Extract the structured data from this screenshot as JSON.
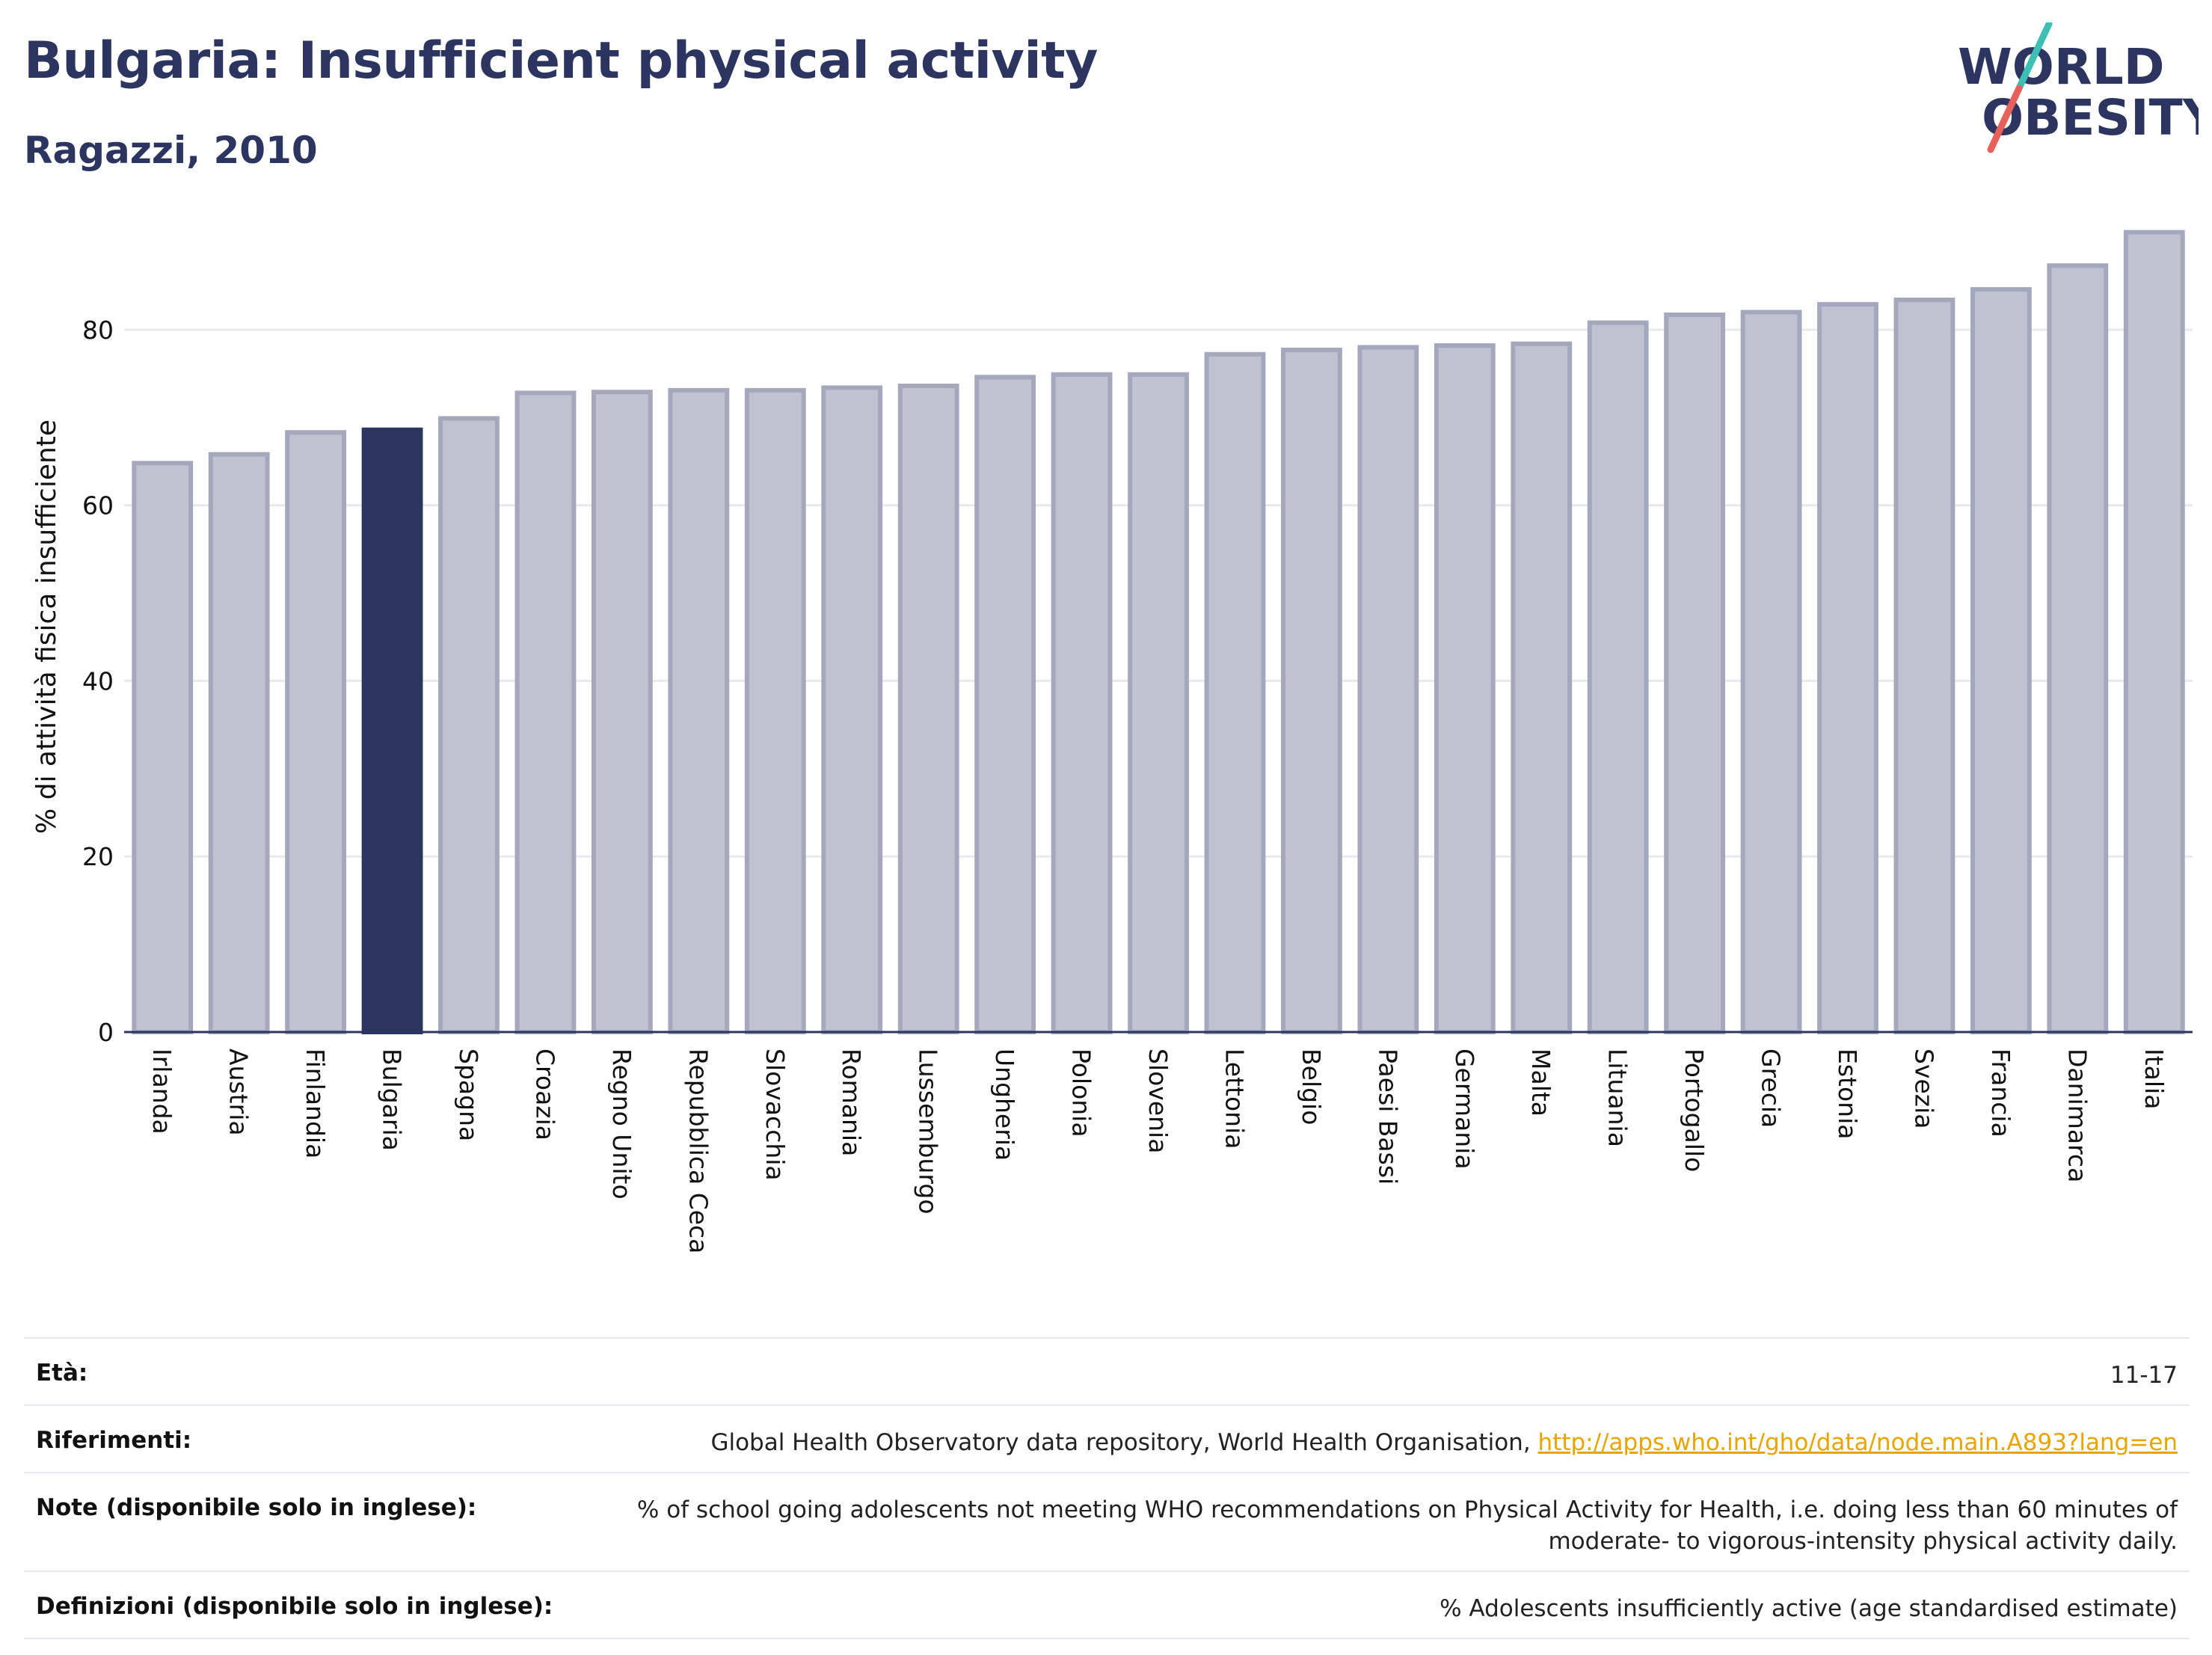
{
  "header": {
    "title": "Bulgaria: Insufficient physical activity",
    "subtitle": "Ragazzi, 2010"
  },
  "logo": {
    "line1": "WORLD",
    "line2": "OBESITY",
    "colors": {
      "text": "#2c3560",
      "slash_top": "#3dbfb4",
      "slash_bottom": "#e8605a"
    }
  },
  "chart_data": {
    "type": "bar",
    "ylabel": "% di attività fisica insufficiente",
    "xlabel": "",
    "ylim": [
      0,
      92
    ],
    "yticks": [
      0,
      20,
      40,
      60,
      80
    ],
    "grid": true,
    "highlight": "Bulgaria",
    "colors": {
      "bar": "#bfc2d0",
      "bar_stroke": "#a3a8bd",
      "highlight": "#2c3560",
      "grid": "#e8e9ee",
      "axis": "#2c3560"
    },
    "categories": [
      "Irlanda",
      "Austria",
      "Finlandia",
      "Bulgaria",
      "Spagna",
      "Croazia",
      "Regno Unito",
      "Repubblica Ceca",
      "Slovacchia",
      "Romania",
      "Lussemburgo",
      "Ungheria",
      "Polonia",
      "Slovenia",
      "Lettonia",
      "Belgio",
      "Paesi Bassi",
      "Germania",
      "Malta",
      "Lituania",
      "Portogallo",
      "Grecia",
      "Estonia",
      "Svezia",
      "Francia",
      "Danimarca",
      "Italia"
    ],
    "values": [
      64.8,
      65.8,
      68.3,
      68.6,
      69.9,
      72.8,
      72.9,
      73.1,
      73.1,
      73.4,
      73.6,
      74.6,
      74.9,
      74.9,
      77.2,
      77.7,
      78.0,
      78.2,
      78.4,
      80.8,
      81.7,
      82.0,
      82.9,
      83.4,
      84.6,
      87.3,
      91.1
    ]
  },
  "info": [
    {
      "label": "Età:",
      "value": "11-17"
    },
    {
      "label": "Riferimenti:",
      "value": "Global Health Observatory data repository, World Health Organisation, ",
      "link": "http://apps.who.int/gho/data/node.main.A893?lang=en"
    },
    {
      "label": "Note (disponibile solo in inglese):",
      "value": "% of school going adolescents not meeting WHO recommendations on Physical Activity for Health, i.e. doing less than 60 minutes of moderate- to vigorous-intensity physical activity daily."
    },
    {
      "label": "Definizioni (disponibile solo in inglese):",
      "value": "% Adolescents insufficiently active (age standardised estimate)"
    }
  ]
}
